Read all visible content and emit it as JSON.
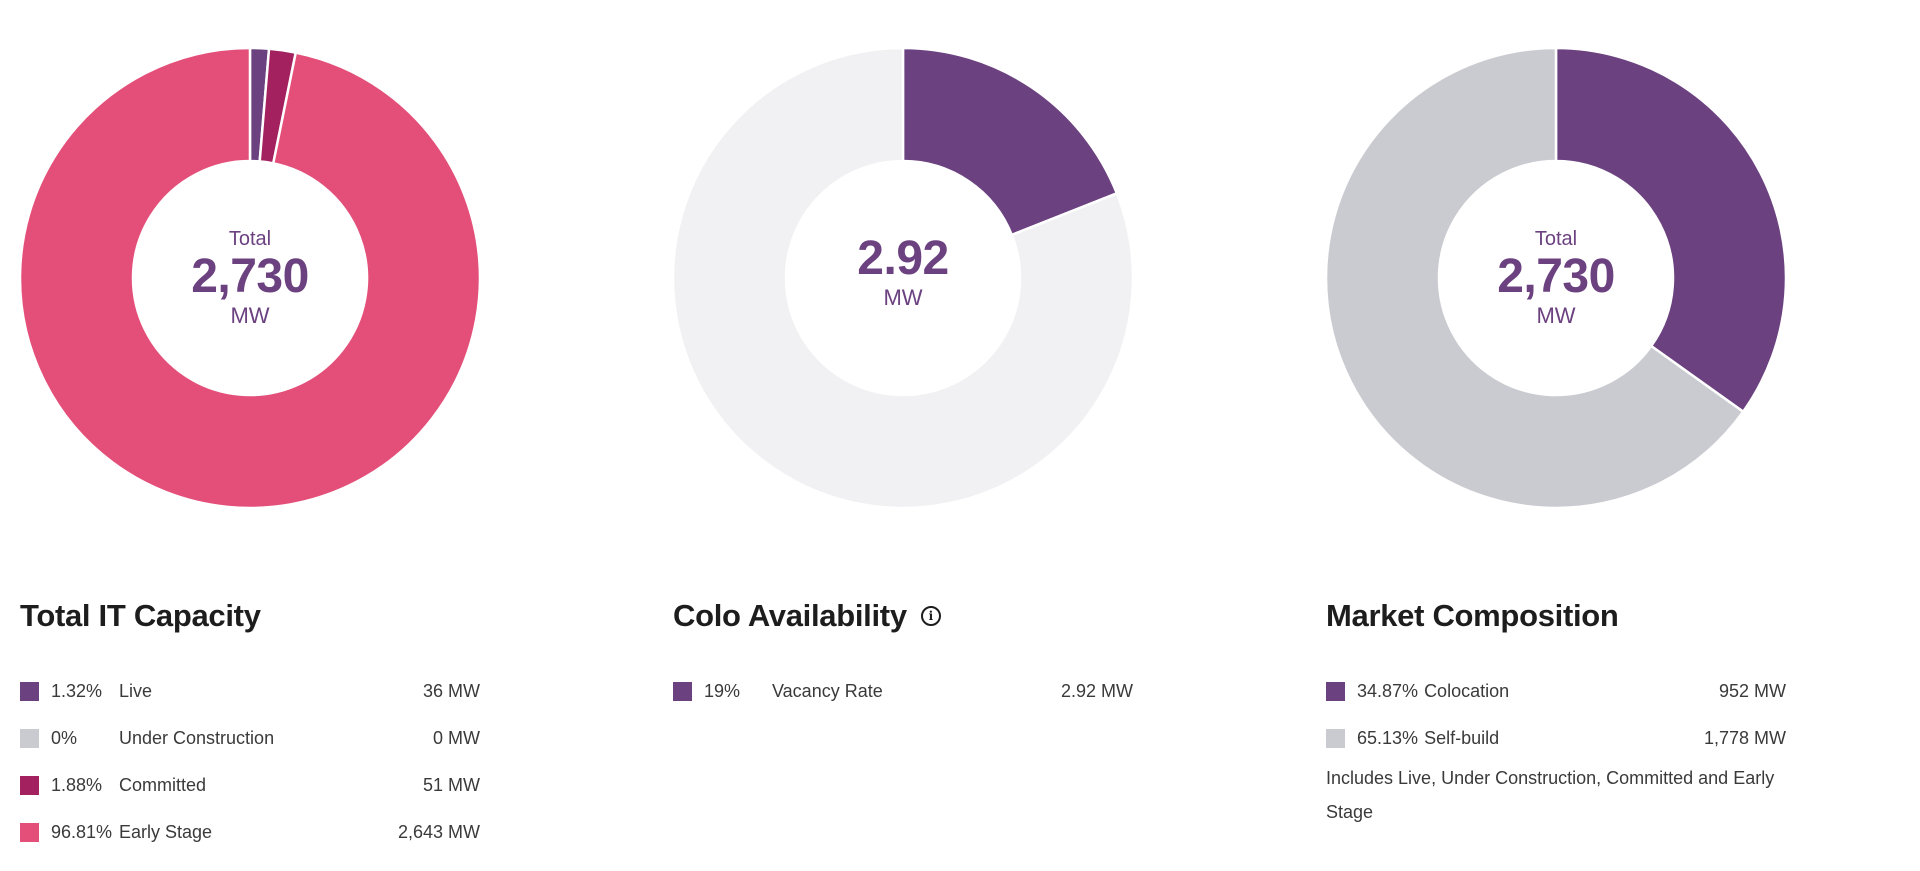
{
  "chart_data": [
    {
      "type": "pie",
      "title": "Total IT Capacity",
      "center": {
        "caption": "Total",
        "value": "2,730",
        "unit": "MW"
      },
      "series": [
        {
          "name": "Live",
          "percent_label": "1.32%",
          "value_label": "36 MW",
          "value": 36,
          "color": "#6b4180"
        },
        {
          "name": "Under Construction",
          "percent_label": "0%",
          "value_label": "0 MW",
          "value": 0,
          "color": "#cacbd0"
        },
        {
          "name": "Committed",
          "percent_label": "1.88%",
          "value_label": "51 MW",
          "value": 51,
          "color": "#a3215f"
        },
        {
          "name": "Early Stage",
          "percent_label": "96.81%",
          "value_label": "2,643 MW",
          "value": 2643,
          "color": "#e44f7a"
        }
      ]
    },
    {
      "type": "pie",
      "title": "Colo Availability",
      "has_info_icon": true,
      "center": {
        "caption": "",
        "value": "2.92",
        "unit": "MW"
      },
      "series": [
        {
          "name": "Vacancy Rate",
          "percent_label": "19%",
          "value_label": "2.92 MW",
          "value": 19,
          "color": "#6b4180"
        },
        {
          "value": 81,
          "color": "#f1f1f3"
        }
      ]
    },
    {
      "type": "pie",
      "title": "Market Composition",
      "center": {
        "caption": "Total",
        "value": "2,730",
        "unit": "MW"
      },
      "series": [
        {
          "name": "Colocation",
          "percent_label": "34.87%",
          "value_label": "952 MW",
          "value": 952,
          "color": "#6b4180"
        },
        {
          "name": "Self-build",
          "percent_label": "65.13%",
          "value_label": "1,778 MW",
          "value": 1778,
          "color": "#cacbd0"
        }
      ],
      "note": "Includes Live, Under Construction, Committed and Early Stage"
    }
  ],
  "icons": {
    "info": "info-icon"
  }
}
